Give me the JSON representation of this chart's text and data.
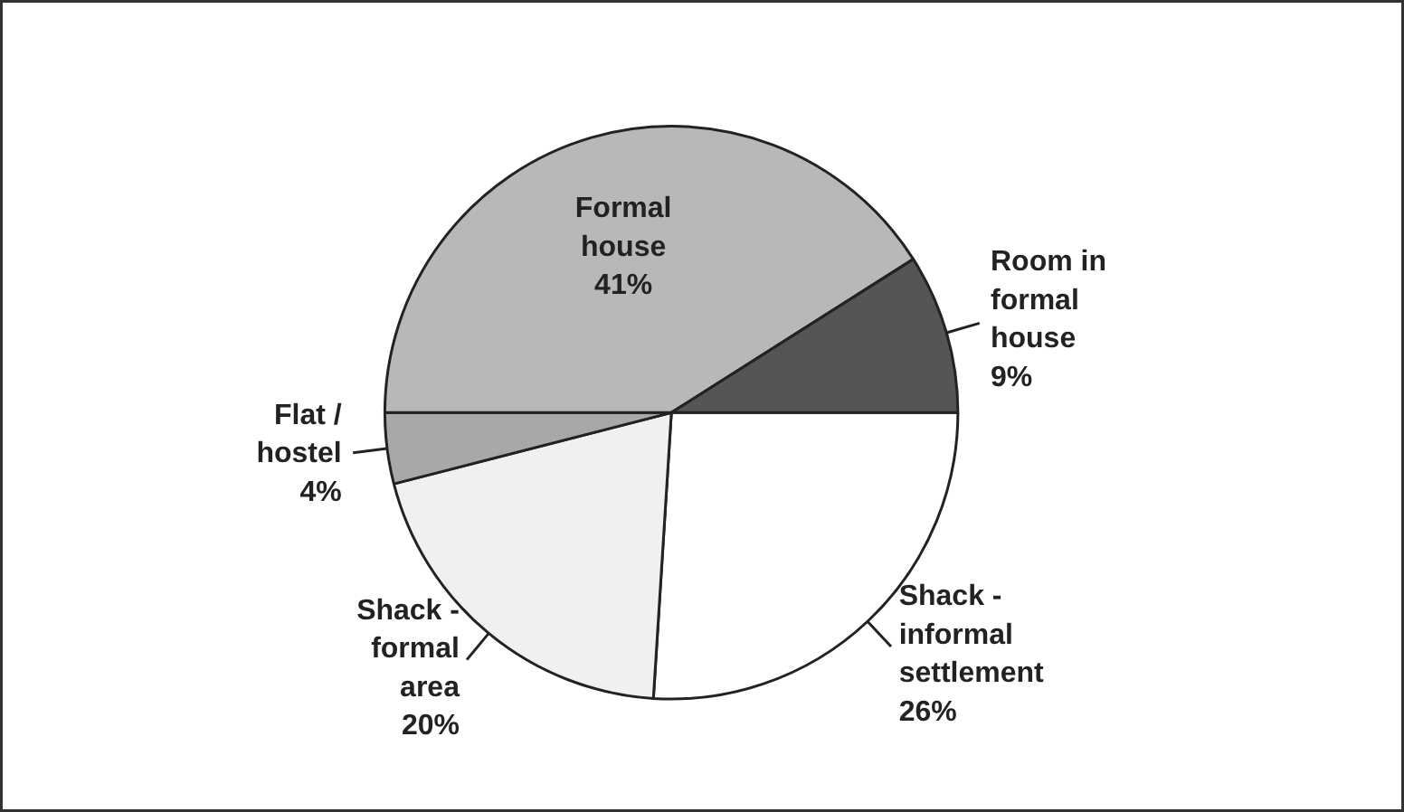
{
  "chart_data": {
    "type": "pie",
    "categories": [
      "Shack - informal settlement",
      "Shack - formal area",
      "Flat / hostel",
      "Formal house",
      "Room in formal house"
    ],
    "values": [
      26,
      20,
      4,
      41,
      9
    ],
    "value_labels": [
      "26%",
      "20%",
      "4%",
      "41%",
      "9%"
    ],
    "colors": [
      "#ffffff",
      "#f0f0f0",
      "#a8a8a8",
      "#b8b8b8",
      "#555555"
    ],
    "legend": false
  }
}
